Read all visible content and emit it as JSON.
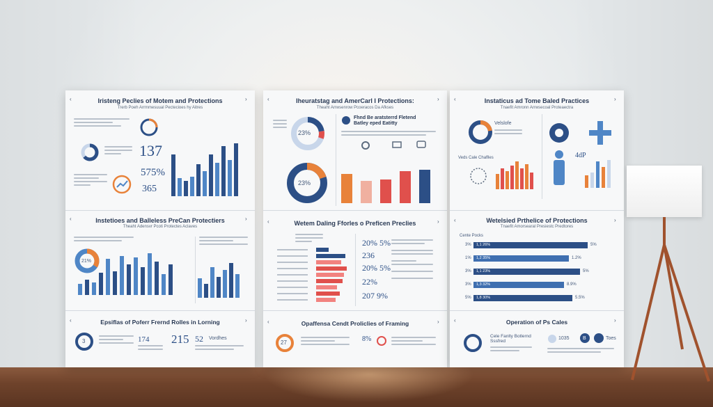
{
  "scene": "wall-posters",
  "panels": {
    "p1": {
      "title": "Iristeng Peclies of Motem and Protections",
      "subtitle": "Trerb Poeh Arrmmesuual Pectecioes hy Aitres",
      "stats": [
        "137",
        "575%",
        "365"
      ]
    },
    "p2": {
      "title": "Iheuratstag and AmerCarl I Protections:",
      "subtitle": "Theaht Arrwsenrow Pcoeracos Da Afkses",
      "donut_top": "23%",
      "donut_bottom": "23%",
      "box_title": "Fhnd Be aratsterrd Fletend Batley eped Eatitty"
    },
    "p3": {
      "title": "Instaticus ad Tome Baled Practices",
      "subtitle": "Tnaefit Amronn Arrwsecoal Proteaectra",
      "label": "Velslofe",
      "caption": "Veds Cale Chaflles",
      "badge": "4dP"
    },
    "p4": {
      "title": "Instetioes and Balleless PreCan Protectiers",
      "subtitle": "Theaht Adensvr Pcoti Protectes Aclaves",
      "donut": "21%"
    },
    "p5": {
      "title": "Wetem Daling Fforles o Preficen Preclies",
      "stats": [
        "20% 5%",
        "236",
        "20% 5%",
        "22%",
        "207 9%"
      ]
    },
    "p6": {
      "title": "Wetelsied Prthelice of Protections",
      "subtitle": "Tnaefit Amorsearal Presiestc Predtores",
      "header": "Cente Pocks",
      "rows": [
        {
          "label": "3%",
          "bar_text": "1,1 26%",
          "value": "5%",
          "level": 0.92
        },
        {
          "label": "1%",
          "bar_text": "1,2 35%",
          "value": "1.2%",
          "level": 0.77
        },
        {
          "label": "3%",
          "bar_text": "1,1 23%",
          "value": "5%",
          "level": 0.86
        },
        {
          "label": "3%",
          "bar_text": "1,3 32%",
          "value": "8.9%",
          "level": 0.73
        },
        {
          "label": "5%",
          "bar_text": "1,8 30%",
          "value": "5.5%",
          "level": 0.8
        }
      ]
    },
    "p7": {
      "title": "Epsiflas of Poferr Frernd Rolles in Lorning",
      "stats": [
        "174",
        "215",
        "52"
      ],
      "label": "Vordhes",
      "donut": "3"
    },
    "p8": {
      "title": "Opaffensa Cendt Proliclies of Framing",
      "donut": "27",
      "stat": "8%"
    },
    "p9": {
      "title": "Operation of Ps Cales",
      "sub": "Cele Fanlty Botlernd Sssfred",
      "count": "1035",
      "badge": "B",
      "extra": "Toes"
    }
  },
  "colors": {
    "navy": "#2c4f86",
    "blue": "#4f86c6",
    "orange": "#e8823a",
    "red": "#e0504c",
    "light": "#c8d6ea"
  }
}
